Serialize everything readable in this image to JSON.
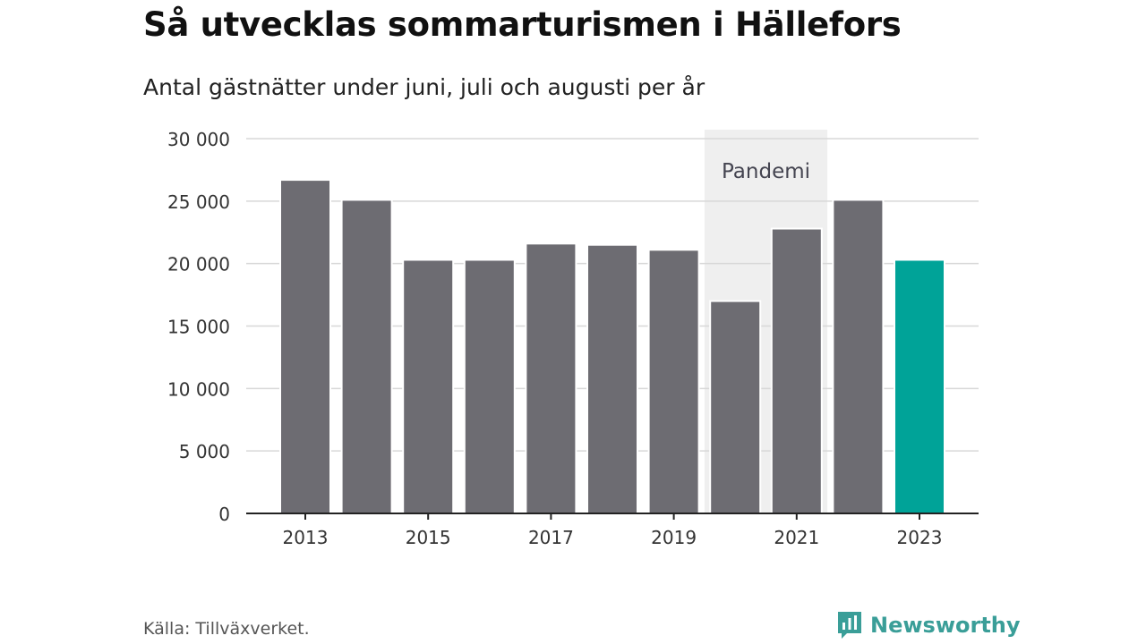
{
  "header": {
    "title": "Så utvecklas sommarturismen i Hällefors",
    "subtitle": "Antal gästnätter under juni, juli och augusti per år"
  },
  "footer": {
    "source": "Källa: Tillväxverket.",
    "brand": "Newsworthy"
  },
  "colors": {
    "bar": "#6d6c72",
    "highlight": "#00a398",
    "band": "#efefef",
    "grid": "#d8d8d8",
    "brand": "#3a9e98"
  },
  "chart_data": {
    "type": "bar",
    "categories": [
      "2013",
      "2014",
      "2015",
      "2016",
      "2017",
      "2018",
      "2019",
      "2020",
      "2021",
      "2022",
      "2023"
    ],
    "values": [
      26700,
      25100,
      20300,
      20300,
      21600,
      21500,
      21100,
      17000,
      22800,
      25100,
      20300
    ],
    "highlight_index": 10,
    "ylim": [
      0,
      30000
    ],
    "yticks": [
      0,
      5000,
      10000,
      15000,
      20000,
      25000,
      30000
    ],
    "ytick_labels": [
      "0",
      "5 000",
      "10 000",
      "15 000",
      "20 000",
      "25 000",
      "30 000"
    ],
    "xtick_labels": [
      "2013",
      "2015",
      "2017",
      "2019",
      "2021",
      "2023"
    ],
    "grid": true,
    "annotation": {
      "label": "Pandemi",
      "from": "2020",
      "to": "2021"
    },
    "xlabel": "",
    "ylabel": ""
  }
}
